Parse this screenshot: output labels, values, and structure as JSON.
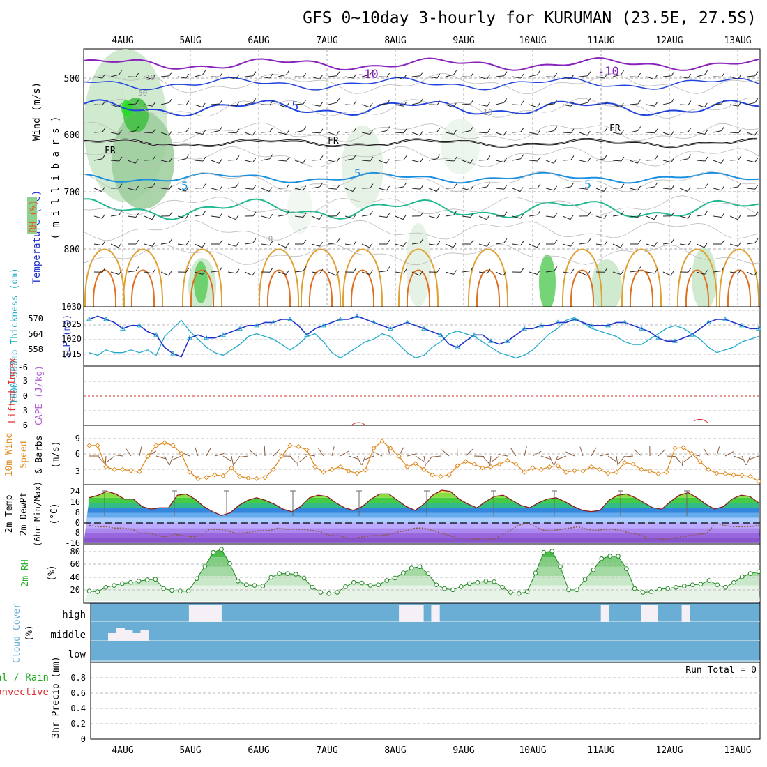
{
  "title": "GFS 0~10day 3-hourly for KURUMAN (23.5E, 27.5S)",
  "dates": [
    "4AUG",
    "5AUG",
    "6AUG",
    "7AUG",
    "8AUG",
    "9AUG",
    "10AUG",
    "11AUG",
    "12AUG",
    "13AUG"
  ],
  "colors": {
    "wind_axis": "#000000",
    "temp_axis": "#2233cc",
    "rh_axis": "#e05a2a",
    "thickness": "#22aacc",
    "slp": "#2233cc",
    "lifted": "#e03030",
    "cape": "#b060d0",
    "wind10": "#e08a20",
    "temp2m_top": "#22aa22",
    "cloud_bg": "#6aaed6",
    "precip": "#22aa22"
  },
  "panels": {
    "upper": {
      "ylabel_wind": "Wind (m/s)",
      "ylabel_temp": "Temperature (°C)",
      "ylabel_rh": "RH (%)",
      "ylabel_mb": "( m i l l i b a r s )",
      "yticks": [
        "500",
        "600",
        "700",
        "800"
      ],
      "contour_labels": [
        "-10",
        "-10",
        "-5",
        "5",
        "5",
        "5",
        "FR",
        "FR",
        "FR",
        "10",
        "10",
        "50",
        "10"
      ]
    },
    "thickness": {
      "ylabel_left": "1000~500mb Thickness (dm)",
      "ylabel_right": "SLP (mb)",
      "left_ticks": [
        "570",
        "564",
        "558"
      ],
      "right_ticks": [
        "1030",
        "1025",
        "1020",
        "1015"
      ]
    },
    "stability": {
      "ylabel_li": "Lifted Index",
      "ylabel_cape": "CAPE (J/kg)",
      "li_ticks": [
        "-6",
        "-3",
        "0",
        "3",
        "6"
      ]
    },
    "wind10": {
      "ylabel1": "10m Wind",
      "ylabel2": "Speed",
      "ylabel3": "& Barbs",
      "ylabel_unit": "(m/s)",
      "yticks": [
        "9",
        "6",
        "3"
      ]
    },
    "temp2m": {
      "ylabel1": "2m Temp",
      "ylabel2": "2m DewPt",
      "ylabel3": "(6hr Min/Max)",
      "ylabel_unit": "(°C)",
      "yticks": [
        "24",
        "16",
        "8",
        "0",
        "-8",
        "-16"
      ]
    },
    "rh2m": {
      "ylabel1": "2m RH",
      "ylabel_unit": "(%)",
      "yticks": [
        "80",
        "60",
        "40",
        "20"
      ]
    },
    "cloud": {
      "ylabel1": "Cloud Cover",
      "ylabel_unit": "(%)",
      "levels": [
        "high",
        "middle",
        "low"
      ]
    },
    "precip": {
      "ylabel1": "Total / Rain",
      "ylabel2": "Convective",
      "ylabel3": "3hr Precip (mm)",
      "run_total": "Run Total = 0",
      "yticks": [
        "0.8",
        "0.6",
        "0.4",
        "0.2",
        "0"
      ]
    }
  },
  "chart_data": [
    {
      "type": "line",
      "title": "1000~500mb Thickness (dm) and SLP (mb)",
      "x": "3-hourly steps, 4AUG to 13AUG",
      "series": [
        {
          "name": "SLP (mb)",
          "values": [
            1027,
            1028,
            1027,
            1026,
            1024,
            1025,
            1025,
            1023,
            1022,
            1018,
            1016,
            1015,
            1021,
            1022,
            1021,
            1021,
            1022,
            1023,
            1024,
            1025,
            1025,
            1026,
            1026,
            1027,
            1027,
            1025,
            1022,
            1024,
            1025,
            1026,
            1027,
            1027,
            1028,
            1027,
            1026,
            1025,
            1024,
            1025,
            1026,
            1025,
            1024,
            1023,
            1022,
            1019,
            1018,
            1020,
            1022,
            1022,
            1020,
            1019,
            1020,
            1022,
            1024,
            1024,
            1025,
            1025,
            1026,
            1026,
            1027,
            1026,
            1025,
            1025,
            1025,
            1026,
            1026,
            1025,
            1024,
            1023,
            1021,
            1020,
            1020,
            1021,
            1022,
            1024,
            1026,
            1027,
            1027,
            1026,
            1025,
            1024,
            1024
          ]
        },
        {
          "name": "Thickness (dm)",
          "values": [
            559,
            558,
            560,
            559,
            559,
            560,
            559,
            560,
            558,
            565,
            568,
            571,
            567,
            564,
            561,
            559,
            558,
            560,
            562,
            565,
            566,
            565,
            564,
            562,
            560,
            562,
            565,
            566,
            563,
            559,
            557,
            559,
            561,
            563,
            564,
            566,
            565,
            562,
            559,
            557,
            558,
            561,
            563,
            566,
            567,
            566,
            565,
            563,
            561,
            559,
            558,
            557,
            558,
            560,
            563,
            566,
            568,
            571,
            572,
            570,
            568,
            567,
            566,
            565,
            563,
            562,
            562,
            564,
            566,
            568,
            569,
            568,
            566,
            564,
            561,
            559,
            560,
            561,
            563,
            564,
            565
          ]
        }
      ]
    },
    {
      "type": "line",
      "title": "10m Wind Speed (m/s)",
      "series": [
        {
          "name": "10m Wind Speed",
          "values": [
            9.0,
            9.0,
            5.0,
            4.5,
            4.5,
            4.3,
            4.1,
            7.0,
            9.0,
            9.5,
            9.0,
            7.5,
            4.0,
            2.8,
            3.0,
            3.5,
            3.3,
            4.8,
            3.2,
            2.9,
            2.8,
            3.0,
            4.5,
            7.0,
            9.0,
            8.8,
            8.2,
            5.0,
            4.0,
            4.5,
            5.0,
            4.2,
            3.8,
            4.4,
            8.5,
            9.8,
            8.5,
            7.0,
            5.0,
            5.6,
            4.5,
            3.5,
            3.2,
            3.5,
            5.2,
            6.0,
            5.5,
            4.8,
            5.0,
            5.5,
            6.2,
            5.5,
            4.0,
            4.8,
            4.5,
            5.0,
            5.2,
            4.0,
            4.3,
            4.2,
            5.0,
            4.5,
            3.8,
            4.0,
            5.8,
            5.5,
            4.5,
            4.2,
            3.7,
            4.0,
            8.5,
            8.6,
            7.5,
            6.0,
            4.5,
            3.8,
            3.7,
            3.5,
            3.4,
            3.2,
            2.3
          ]
        }
      ]
    },
    {
      "type": "line",
      "title": "2m RH (%)",
      "series": [
        {
          "name": "2m RH",
          "values": [
            16,
            15,
            22,
            25,
            28,
            30,
            32,
            34,
            35,
            20,
            17,
            16,
            16,
            36,
            56,
            78,
            83,
            60,
            32,
            26,
            25,
            24,
            38,
            44,
            44,
            43,
            37,
            22,
            14,
            12,
            14,
            23,
            30,
            29,
            25,
            26,
            33,
            37,
            45,
            53,
            55,
            44,
            26,
            20,
            18,
            23,
            28,
            30,
            32,
            31,
            22,
            14,
            12,
            15,
            45,
            78,
            80,
            55,
            18,
            18,
            35,
            50,
            68,
            72,
            72,
            52,
            20,
            14,
            15,
            19,
            20,
            22,
            24,
            26,
            27,
            33,
            26,
            22,
            30,
            39,
            44,
            47
          ]
        }
      ]
    },
    {
      "type": "area",
      "title": "2m Temp / 2m DewPt (°C)",
      "series": [
        {
          "name": "2m Temp max",
          "values": [
            20,
            22,
            25,
            23,
            19,
            19,
            13,
            11,
            12,
            12,
            22,
            23,
            19,
            13,
            9,
            6,
            8,
            14,
            18,
            20,
            18,
            15,
            11,
            9,
            13,
            20,
            22,
            21,
            16,
            12,
            10,
            13,
            19,
            23,
            23,
            18,
            13,
            10,
            15,
            22,
            26,
            25,
            19,
            15,
            12,
            17,
            21,
            22,
            18,
            14,
            12,
            16,
            19,
            20,
            17,
            13,
            10,
            9,
            10,
            18,
            22,
            23,
            20,
            16,
            12,
            11,
            17,
            22,
            24,
            20,
            15,
            11,
            13,
            19,
            22,
            21,
            16
          ]
        },
        {
          "name": "2m DewPt",
          "values": [
            -2,
            -3,
            -3,
            -4,
            -4,
            -5,
            -8,
            -8,
            -10,
            -11,
            -9,
            -10,
            -11,
            -10,
            -5,
            -5,
            -6,
            -8,
            -8,
            -7,
            -6,
            -6,
            -4,
            -5,
            -5,
            -5,
            -6,
            -7,
            -10,
            -10,
            -12,
            -12,
            -11,
            -10,
            -10,
            -9,
            -7,
            -6,
            -4,
            -4,
            -6,
            -8,
            -10,
            -12,
            -12,
            -13,
            -12,
            -13,
            -10,
            -6,
            -2,
            0,
            -3,
            -6,
            -6,
            -5,
            -4,
            -3,
            -5,
            -6,
            -5,
            -5,
            -6,
            -8,
            -9,
            -12,
            -12,
            -13,
            -12,
            -11,
            -10,
            -9,
            -8,
            0,
            -2,
            -3,
            -3,
            -3,
            -2
          ]
        }
      ]
    },
    {
      "type": "bar",
      "title": "Cloud Cover (%)",
      "series": [
        {
          "name": "high cloud",
          "values": [
            0,
            0,
            0,
            0,
            0,
            0,
            0,
            0,
            0,
            0,
            0,
            0,
            60,
            60,
            60,
            60,
            0,
            0,
            0,
            0,
            0,
            0,
            0,
            0,
            0,
            0,
            0,
            0,
            0,
            0,
            0,
            0,
            0,
            0,
            0,
            0,
            0,
            0,
            60,
            60,
            60,
            0,
            60,
            0,
            0,
            0,
            0,
            0,
            0,
            0,
            0,
            0,
            0,
            0,
            0,
            0,
            0,
            0,
            0,
            0,
            0,
            0,
            0,
            60,
            0,
            0,
            0,
            0,
            60,
            60,
            0,
            0,
            0,
            60,
            0,
            0,
            0,
            0,
            0,
            0,
            0,
            0,
            0
          ]
        },
        {
          "name": "middle cloud",
          "values": [
            0,
            0,
            30,
            50,
            40,
            30,
            40,
            0,
            0,
            0,
            0,
            0,
            0,
            0,
            0,
            0,
            0,
            0,
            0,
            0,
            0,
            0,
            0,
            0,
            0,
            0,
            0,
            0,
            0,
            0,
            0,
            0,
            0,
            0,
            0,
            0,
            0,
            0,
            0,
            0,
            0,
            0,
            0,
            0,
            0,
            0,
            0,
            0,
            0,
            0,
            0,
            0,
            0,
            0,
            0,
            0,
            0,
            0,
            0,
            0,
            0,
            0,
            0,
            0,
            0,
            0,
            0,
            0,
            0,
            0,
            0,
            0,
            0,
            0,
            0,
            0,
            0,
            0,
            0,
            0,
            0,
            0,
            0
          ]
        },
        {
          "name": "low cloud",
          "values": [
            0,
            0,
            0,
            0,
            0,
            0,
            0,
            0,
            0,
            0,
            0,
            0,
            0,
            0,
            0,
            0,
            0,
            0,
            0,
            0,
            0,
            0,
            0,
            0,
            0,
            0,
            0,
            0,
            0,
            0,
            0,
            0,
            0,
            0,
            0,
            0,
            0,
            0,
            0,
            0,
            0,
            0,
            0,
            0,
            0,
            0,
            0,
            0,
            0,
            0,
            0,
            0,
            0,
            0,
            0,
            0,
            0,
            0,
            0,
            0,
            0,
            0,
            0,
            0,
            0,
            0,
            0,
            0,
            0,
            0,
            0,
            0,
            0,
            0,
            0,
            0,
            0,
            0,
            0,
            0,
            0,
            0,
            0
          ]
        }
      ]
    },
    {
      "type": "bar",
      "title": "3hr Precip (mm)",
      "ylim": [
        0,
        1
      ],
      "series": [
        {
          "name": "Total",
          "values": [
            0,
            0,
            0,
            0,
            0,
            0,
            0,
            0,
            0,
            0,
            0,
            0,
            0,
            0,
            0,
            0,
            0,
            0,
            0,
            0,
            0,
            0,
            0,
            0,
            0,
            0,
            0,
            0,
            0,
            0,
            0,
            0,
            0,
            0,
            0,
            0,
            0,
            0,
            0,
            0,
            0,
            0,
            0,
            0,
            0,
            0,
            0,
            0,
            0,
            0,
            0,
            0,
            0,
            0,
            0,
            0,
            0,
            0,
            0,
            0,
            0,
            0,
            0,
            0,
            0,
            0,
            0,
            0,
            0,
            0,
            0,
            0,
            0,
            0,
            0,
            0,
            0,
            0,
            0,
            0,
            0
          ]
        }
      ]
    }
  ]
}
